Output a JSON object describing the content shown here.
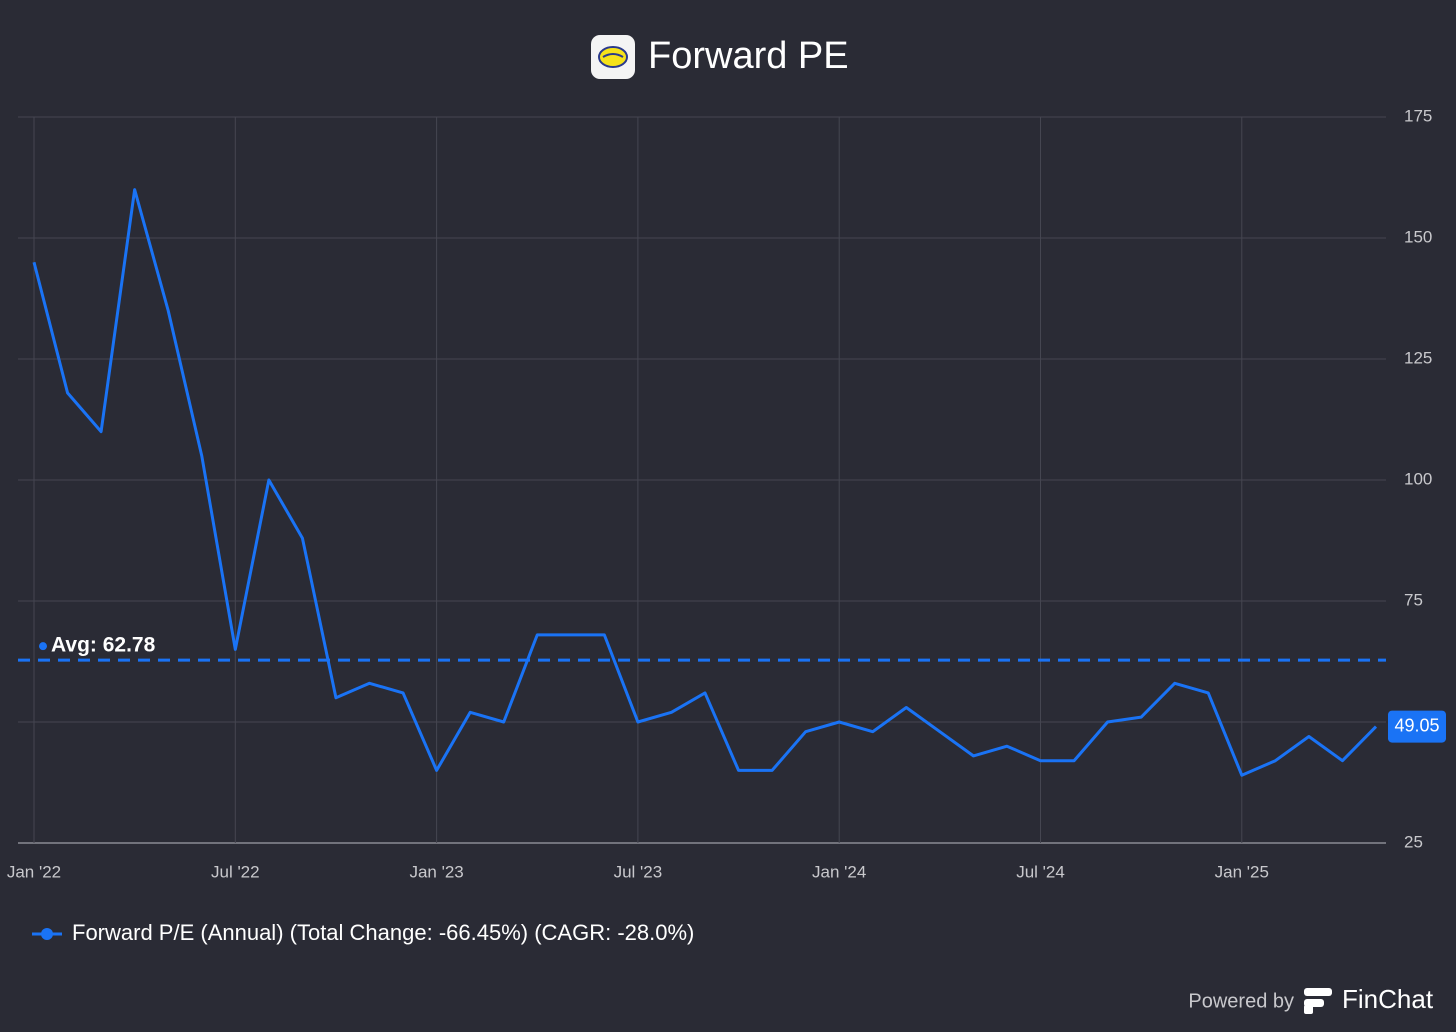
{
  "chart_data": {
    "type": "line",
    "title": "Forward PE",
    "x": [
      "2022-01",
      "2022-02",
      "2022-03",
      "2022-04",
      "2022-05",
      "2022-06",
      "2022-07",
      "2022-08",
      "2022-09",
      "2022-10",
      "2022-11",
      "2022-12",
      "2023-01",
      "2023-02",
      "2023-03",
      "2023-04",
      "2023-05",
      "2023-06",
      "2023-07",
      "2023-08",
      "2023-09",
      "2023-10",
      "2023-11",
      "2023-12",
      "2024-01",
      "2024-02",
      "2024-03",
      "2024-04",
      "2024-05",
      "2024-06",
      "2024-07",
      "2024-08",
      "2024-09",
      "2024-10",
      "2024-11",
      "2024-12",
      "2025-01",
      "2025-02",
      "2025-03",
      "2025-04",
      "2025-05"
    ],
    "series": [
      {
        "name": "Forward P/E (Annual) (Total Change: -66.45%) (CAGR: -28.0%)",
        "color": "#1a73f5",
        "values": [
          145,
          118,
          110,
          160,
          135,
          105,
          65,
          100,
          88,
          55,
          58,
          56,
          40,
          52,
          50,
          68,
          68,
          68,
          50,
          52,
          56,
          40,
          40,
          48,
          50,
          48,
          53,
          48,
          43,
          45,
          42,
          42,
          50,
          51,
          58,
          56,
          39,
          42,
          47,
          42,
          49.05
        ]
      }
    ],
    "average": 62.78,
    "average_label": "Avg: 62.78",
    "ylim": [
      25,
      175
    ],
    "yticks": [
      25,
      50,
      75,
      100,
      125,
      150,
      175
    ],
    "xticks": [
      {
        "value": "2022-01",
        "label": "Jan '22"
      },
      {
        "value": "2022-07",
        "label": "Jul '22"
      },
      {
        "value": "2023-01",
        "label": "Jan '23"
      },
      {
        "value": "2023-07",
        "label": "Jul '23"
      },
      {
        "value": "2024-01",
        "label": "Jan '24"
      },
      {
        "value": "2024-07",
        "label": "Jul '24"
      },
      {
        "value": "2025-01",
        "label": "Jan '25"
      }
    ],
    "grid": true,
    "footer": {
      "powered": "Powered by",
      "brand": "FinChat"
    }
  }
}
